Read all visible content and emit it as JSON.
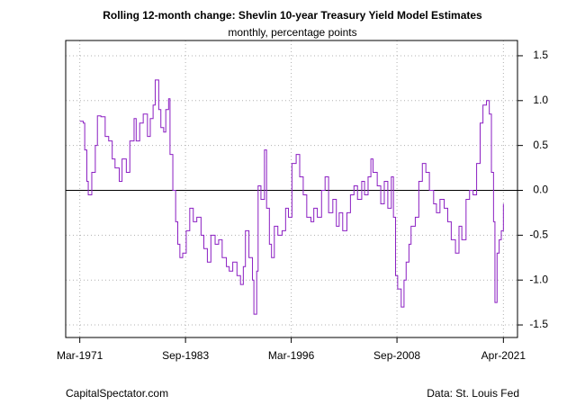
{
  "chart_data": {
    "type": "line",
    "step": true,
    "title": "Rolling 12-month change: Shevlin 10-year Treasury Yield Model Estimates",
    "subtitle": "monthly, percentage points",
    "source_left": "CapitalSpectator.com",
    "source_right": "Data: St. Louis Fed",
    "x": [
      "1971-03",
      "1971-08",
      "1971-10",
      "1972-01",
      "1972-03",
      "1972-08",
      "1973-01",
      "1973-04",
      "1973-09",
      "1974-03",
      "1974-08",
      "1975-01",
      "1975-05",
      "1975-11",
      "1976-03",
      "1976-09",
      "1977-02",
      "1977-08",
      "1977-11",
      "1978-04",
      "1978-09",
      "1979-03",
      "1979-07",
      "1979-11",
      "1980-02",
      "1980-07",
      "1980-10",
      "1981-02",
      "1981-05",
      "1981-09",
      "1981-11",
      "1982-03",
      "1982-07",
      "1982-10",
      "1983-01",
      "1983-05",
      "1983-10",
      "1984-03",
      "1984-08",
      "1985-01",
      "1985-07",
      "1985-11",
      "1986-04",
      "1986-09",
      "1987-03",
      "1987-08",
      "1988-01",
      "1988-07",
      "1988-11",
      "1989-04",
      "1989-10",
      "1990-03",
      "1990-07",
      "1990-10",
      "1991-03",
      "1991-08",
      "1991-10",
      "1992-02",
      "1992-04",
      "1992-08",
      "1993-01",
      "1993-04",
      "1993-08",
      "1993-11",
      "1994-03",
      "1994-08",
      "1995-02",
      "1995-07",
      "1995-11",
      "1996-04",
      "1996-10",
      "1997-03",
      "1997-08",
      "1998-01",
      "1998-07",
      "1998-11",
      "1999-04",
      "1999-10",
      "2000-03",
      "2000-08",
      "2001-02",
      "2001-07",
      "2001-11",
      "2002-04",
      "2002-10",
      "2003-03",
      "2003-08",
      "2004-01",
      "2004-07",
      "2004-11",
      "2005-04",
      "2005-08",
      "2005-11",
      "2006-05",
      "2006-10",
      "2007-03",
      "2007-08",
      "2008-01",
      "2008-04",
      "2008-07",
      "2008-10",
      "2009-03",
      "2009-07",
      "2009-10",
      "2010-02",
      "2010-05",
      "2010-11",
      "2011-04",
      "2011-09",
      "2012-02",
      "2012-07",
      "2013-01",
      "2013-05",
      "2013-10",
      "2014-04",
      "2014-09",
      "2015-02",
      "2015-08",
      "2016-01",
      "2016-05",
      "2016-11",
      "2017-04",
      "2017-09",
      "2018-02",
      "2018-07",
      "2018-11",
      "2019-04",
      "2019-08",
      "2019-11",
      "2020-02",
      "2020-04",
      "2020-07",
      "2020-10",
      "2021-01",
      "2021-04"
    ],
    "series": [
      {
        "name": "Rolling 12-month change",
        "color": "#8b1fc2",
        "values": [
          0.77,
          0.75,
          0.45,
          0.1,
          -0.05,
          0.2,
          0.5,
          0.83,
          0.82,
          0.6,
          0.55,
          0.35,
          0.25,
          0.1,
          0.35,
          0.2,
          0.55,
          0.8,
          0.55,
          0.75,
          0.85,
          0.6,
          0.8,
          0.95,
          1.23,
          0.9,
          0.7,
          0.65,
          0.9,
          1.02,
          0.4,
          0.0,
          -0.35,
          -0.6,
          -0.75,
          -0.7,
          -0.45,
          -0.2,
          -0.35,
          -0.3,
          -0.5,
          -0.65,
          -0.8,
          -0.5,
          -0.6,
          -0.55,
          -0.75,
          -0.85,
          -0.9,
          -0.8,
          -0.95,
          -1.05,
          -0.85,
          -0.45,
          -0.75,
          -1.0,
          -1.38,
          -0.9,
          0.05,
          -0.1,
          0.45,
          -0.2,
          -0.6,
          -0.75,
          -0.4,
          -0.5,
          -0.45,
          -0.2,
          -0.3,
          0.3,
          0.4,
          0.15,
          -0.05,
          -0.3,
          -0.35,
          -0.2,
          -0.3,
          0.0,
          0.15,
          -0.25,
          -0.1,
          -0.4,
          -0.25,
          -0.45,
          -0.25,
          -0.05,
          0.05,
          -0.1,
          0.1,
          -0.05,
          0.15,
          0.35,
          0.2,
          0.05,
          -0.15,
          0.1,
          -0.2,
          0.15,
          -0.3,
          -0.95,
          -1.1,
          -1.3,
          -1.0,
          -0.8,
          -0.6,
          -0.4,
          -0.3,
          0.1,
          0.3,
          0.2,
          0.0,
          -0.15,
          -0.25,
          -0.1,
          -0.2,
          -0.35,
          -0.55,
          -0.7,
          -0.4,
          -0.55,
          -0.1,
          0.0,
          -0.05,
          0.3,
          0.75,
          0.95,
          1.0,
          0.85,
          0.2,
          -0.35,
          -1.25,
          -0.7,
          -0.55,
          -0.45,
          -0.15
        ]
      }
    ],
    "xlim": [
      "1969-07",
      "2022-12"
    ],
    "xticks": [
      {
        "value": "1971-03",
        "label": "Mar-1971"
      },
      {
        "value": "1983-09",
        "label": "Sep-1983"
      },
      {
        "value": "1996-03",
        "label": "Mar-1996"
      },
      {
        "value": "2008-09",
        "label": "Sep-2008"
      },
      {
        "value": "2021-04",
        "label": "Apr-2021"
      }
    ],
    "ylim": [
      -1.64,
      1.67
    ],
    "yticks": [
      {
        "value": 1.5,
        "label": "1.5"
      },
      {
        "value": 1,
        "label": "1.0"
      },
      {
        "value": 0.5,
        "label": "0.5"
      },
      {
        "value": 0,
        "label": "0.0"
      },
      {
        "value": -0.5,
        "label": "-0.5"
      },
      {
        "value": -1,
        "label": "-1.0"
      },
      {
        "value": -1.5,
        "label": "-1.5"
      }
    ],
    "y_axis_side": "right",
    "hline": 0,
    "grid": true
  }
}
